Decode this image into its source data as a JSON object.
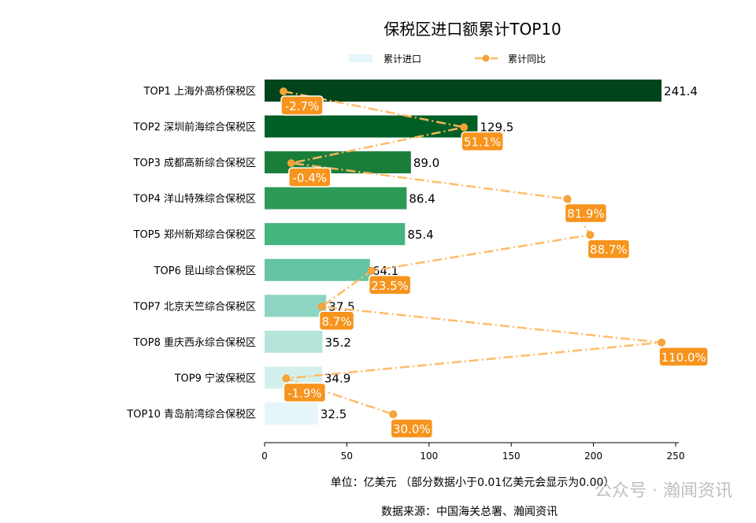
{
  "chart_data": {
    "type": "bar",
    "orientation": "horizontal",
    "title": "保税区进口额累计TOP10",
    "categories": [
      "TOP1 上海外高桥保税区",
      "TOP2 深圳前海综合保税区",
      "TOP3 成都高新综合保税区",
      "TOP4 洋山特殊综合保税区",
      "TOP5 郑州新郑综合保税区",
      "TOP6 昆山综合保税区",
      "TOP7 北京天竺综合保税区",
      "TOP8 重庆西永综合保税区",
      "TOP9 宁波保税区",
      "TOP10 青岛前湾综合保税区"
    ],
    "series": [
      {
        "name": "累计进口",
        "type": "bar",
        "values": [
          241.4,
          129.5,
          89.0,
          86.4,
          85.4,
          64.1,
          37.5,
          35.2,
          34.9,
          32.5
        ],
        "colors": [
          "#00441b",
          "#005f24",
          "#1a7d3a",
          "#2e9a58",
          "#45b47e",
          "#64c4a4",
          "#8dd5c2",
          "#b5e4da",
          "#d3f0ec",
          "#e6f5f9"
        ]
      },
      {
        "name": "累计同比",
        "type": "line",
        "values": [
          -2.7,
          51.1,
          -0.4,
          81.9,
          88.7,
          23.5,
          8.7,
          110.0,
          -1.9,
          30.0
        ],
        "labels": [
          "-2.7%",
          "51.1%",
          "-0.4%",
          "81.9%",
          "88.7%",
          "23.5%",
          "8.7%",
          "110.0%",
          "-1.9%",
          "30.0%"
        ],
        "color": "#fdb863"
      }
    ],
    "value_labels": [
      "241.4",
      "129.5",
      "89.0",
      "86.4",
      "85.4",
      "64.1",
      "37.5",
      "35.2",
      "34.9",
      "32.5"
    ],
    "xlim": [
      0,
      252
    ],
    "xticks": [
      "0",
      "50",
      "100",
      "150",
      "200",
      "250"
    ],
    "xlabel": "单位：亿美元  （部分数据小于0.01亿美元会显示为0.00）",
    "legend": {
      "position": "top-center",
      "entries": [
        "累计进口",
        "累计同比"
      ]
    },
    "grid": false,
    "label_color": "#f7941d"
  },
  "source": "数据来源：中国海关总署、瀚闻资讯",
  "watermark": "公众号 · 瀚闻资讯"
}
